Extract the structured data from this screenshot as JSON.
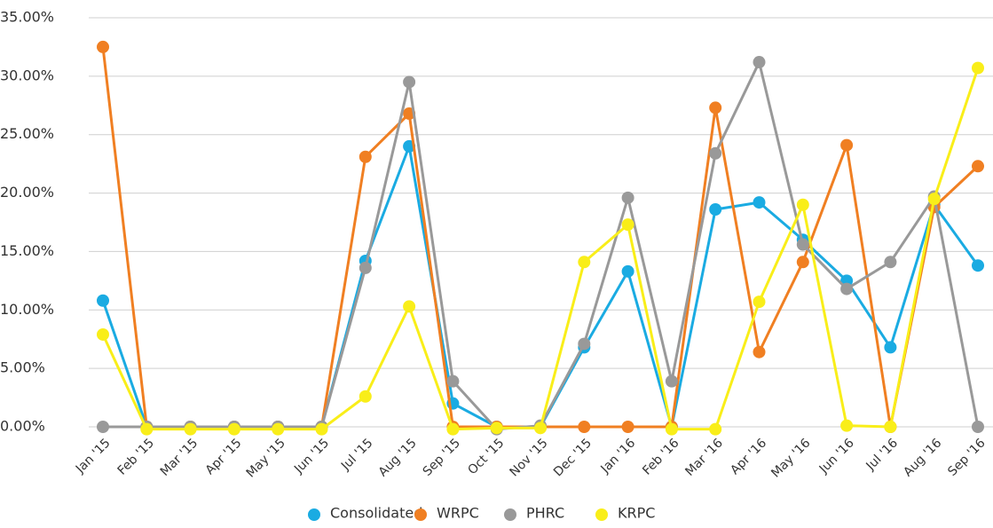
{
  "chart_data": {
    "type": "line",
    "categories": [
      "Jan '15",
      "Feb '15",
      "Mar '15",
      "Apr '15",
      "May '15",
      "Jun '15",
      "Jul '15",
      "Aug '15",
      "Sep '15",
      "Oct '15",
      "Nov '15",
      "Dec '15",
      "Jan '16",
      "Feb '16",
      "Mar '16",
      "Apr '16",
      "May '16",
      "Jun '16",
      "Jul '16",
      "Aug '16",
      "Sep '16"
    ],
    "series": [
      {
        "name": "Consolidated",
        "color": "#1aabe2",
        "values": [
          10.8,
          0,
          0,
          0,
          0,
          0,
          14.2,
          24.0,
          2.0,
          0,
          0,
          6.8,
          13.3,
          0,
          18.6,
          19.2,
          16.0,
          12.5,
          6.8,
          19.0,
          13.8
        ]
      },
      {
        "name": "WRPC",
        "color": "#f07f22",
        "values": [
          32.5,
          0,
          0,
          0,
          0,
          0,
          23.1,
          26.8,
          0,
          0,
          0,
          0,
          0,
          0,
          27.3,
          6.4,
          14.1,
          24.1,
          0,
          18.8,
          22.3
        ]
      },
      {
        "name": "PHRC",
        "color": "#999999",
        "values": [
          0,
          0,
          0,
          0,
          0,
          0,
          13.6,
          29.5,
          3.9,
          -0.2,
          0.1,
          7.1,
          19.6,
          3.9,
          23.4,
          31.2,
          15.6,
          11.8,
          14.1,
          19.7,
          0
        ]
      },
      {
        "name": "KRPC",
        "color": "#f9ee19",
        "values": [
          7.9,
          -0.2,
          -0.2,
          -0.2,
          -0.2,
          -0.2,
          2.6,
          10.3,
          -0.2,
          -0.1,
          -0.1,
          14.1,
          17.3,
          -0.2,
          -0.2,
          10.7,
          19.0,
          0.1,
          0,
          19.5,
          30.7
        ]
      }
    ],
    "ylim": [
      0,
      35
    ],
    "yticks": [
      {
        "value": 0,
        "label": "0.00%"
      },
      {
        "value": 5,
        "label": "5.00%"
      },
      {
        "value": 10,
        "label": "10.00%"
      },
      {
        "value": 15,
        "label": "15.00%"
      },
      {
        "value": 20,
        "label": "20.00%"
      },
      {
        "value": 25,
        "label": "25.00%"
      },
      {
        "value": 30,
        "label": "30.00%"
      },
      {
        "value": 35,
        "label": "35.00%"
      }
    ],
    "grid": true,
    "legend": "bottom"
  }
}
